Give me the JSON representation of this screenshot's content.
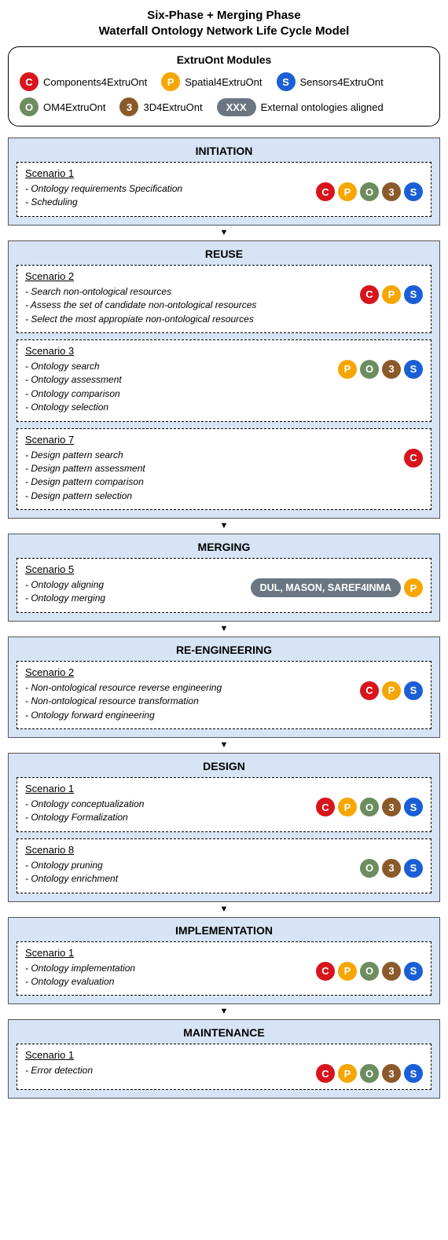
{
  "title_line1": "Six-Phase + Merging Phase",
  "title_line2": "Waterfall Ontology Network Life Cycle Model",
  "legend": {
    "title": "ExtruOnt Modules",
    "modules": [
      {
        "letter": "C",
        "label": "Components4ExtruOnt",
        "color": "#d8141c"
      },
      {
        "letter": "P",
        "label": "Spatial4ExtruOnt",
        "color": "#f7a600"
      },
      {
        "letter": "S",
        "label": "Sensors4ExtruOnt",
        "color": "#1a5fd6"
      },
      {
        "letter": "O",
        "label": "OM4ExtruOnt",
        "color": "#6d8c5f"
      },
      {
        "letter": "3",
        "label": "3D4ExtruOnt",
        "color": "#8b5a2b"
      }
    ],
    "external_badge": "XXX",
    "external_label": "External ontologies aligned",
    "external_color": "#6b7682"
  },
  "colors": {
    "C": "#d8141c",
    "P": "#f7a600",
    "S": "#1a5fd6",
    "O": "#6d8c5f",
    "3": "#8b5a2b",
    "ext": "#6b7682"
  },
  "phases": [
    {
      "name": "INITIATION",
      "scenarios": [
        {
          "title": "Scenario 1",
          "tasks": [
            "- Ontology requirements Specification",
            "- Scheduling"
          ],
          "badges": [
            "C",
            "P",
            "O",
            "3",
            "S"
          ]
        }
      ]
    },
    {
      "name": "REUSE",
      "scenarios": [
        {
          "title": "Scenario 2",
          "tasks": [
            "- Search non-ontological resources",
            "- Assess the set of candidate non-ontological resources",
            "- Select the most appropiate non-ontological resources"
          ],
          "badges": [
            "C",
            "P",
            "S"
          ]
        },
        {
          "title": "Scenario 3",
          "tasks": [
            "- Ontology search",
            "- Ontology assessment",
            "- Ontology comparison",
            "- Ontology selection"
          ],
          "badges": [
            "P",
            "O",
            "3",
            "S"
          ]
        },
        {
          "title": "Scenario 7",
          "tasks": [
            "- Design pattern search",
            "- Design pattern assessment",
            "- Design pattern comparison",
            "- Design pattern selection"
          ],
          "badges": [
            "C"
          ]
        }
      ]
    },
    {
      "name": "MERGING",
      "scenarios": [
        {
          "title": "Scenario 5",
          "tasks": [
            "- Ontology aligning",
            "- Ontology merging"
          ],
          "ext_text": "DUL, MASON, SAREF4INMA",
          "badges": [
            "P"
          ]
        }
      ]
    },
    {
      "name": "RE-ENGINEERING",
      "scenarios": [
        {
          "title": "Scenario 2",
          "tasks": [
            "- Non-ontological resource reverse engineering",
            "- Non-ontological resource transformation",
            "- Ontology forward engineering"
          ],
          "badges": [
            "C",
            "P",
            "S"
          ]
        }
      ]
    },
    {
      "name": "DESIGN",
      "scenarios": [
        {
          "title": "Scenario 1",
          "tasks": [
            "- Ontology conceptualization",
            "- Ontology Formalization"
          ],
          "badges": [
            "C",
            "P",
            "O",
            "3",
            "S"
          ]
        },
        {
          "title": "Scenario 8",
          "tasks": [
            "- Ontology pruning",
            "- Ontology enrichment"
          ],
          "badges": [
            "O",
            "3",
            "S"
          ]
        }
      ]
    },
    {
      "name": "IMPLEMENTATION",
      "scenarios": [
        {
          "title": "Scenario 1",
          "tasks": [
            "- Ontology implementation",
            "- Ontology evaluation"
          ],
          "badges": [
            "C",
            "P",
            "O",
            "3",
            "S"
          ]
        }
      ]
    },
    {
      "name": "MAINTENANCE",
      "scenarios": [
        {
          "title": "Scenario 1",
          "tasks": [
            "- Error detection"
          ],
          "badges": [
            "C",
            "P",
            "O",
            "3",
            "S"
          ]
        }
      ]
    }
  ]
}
